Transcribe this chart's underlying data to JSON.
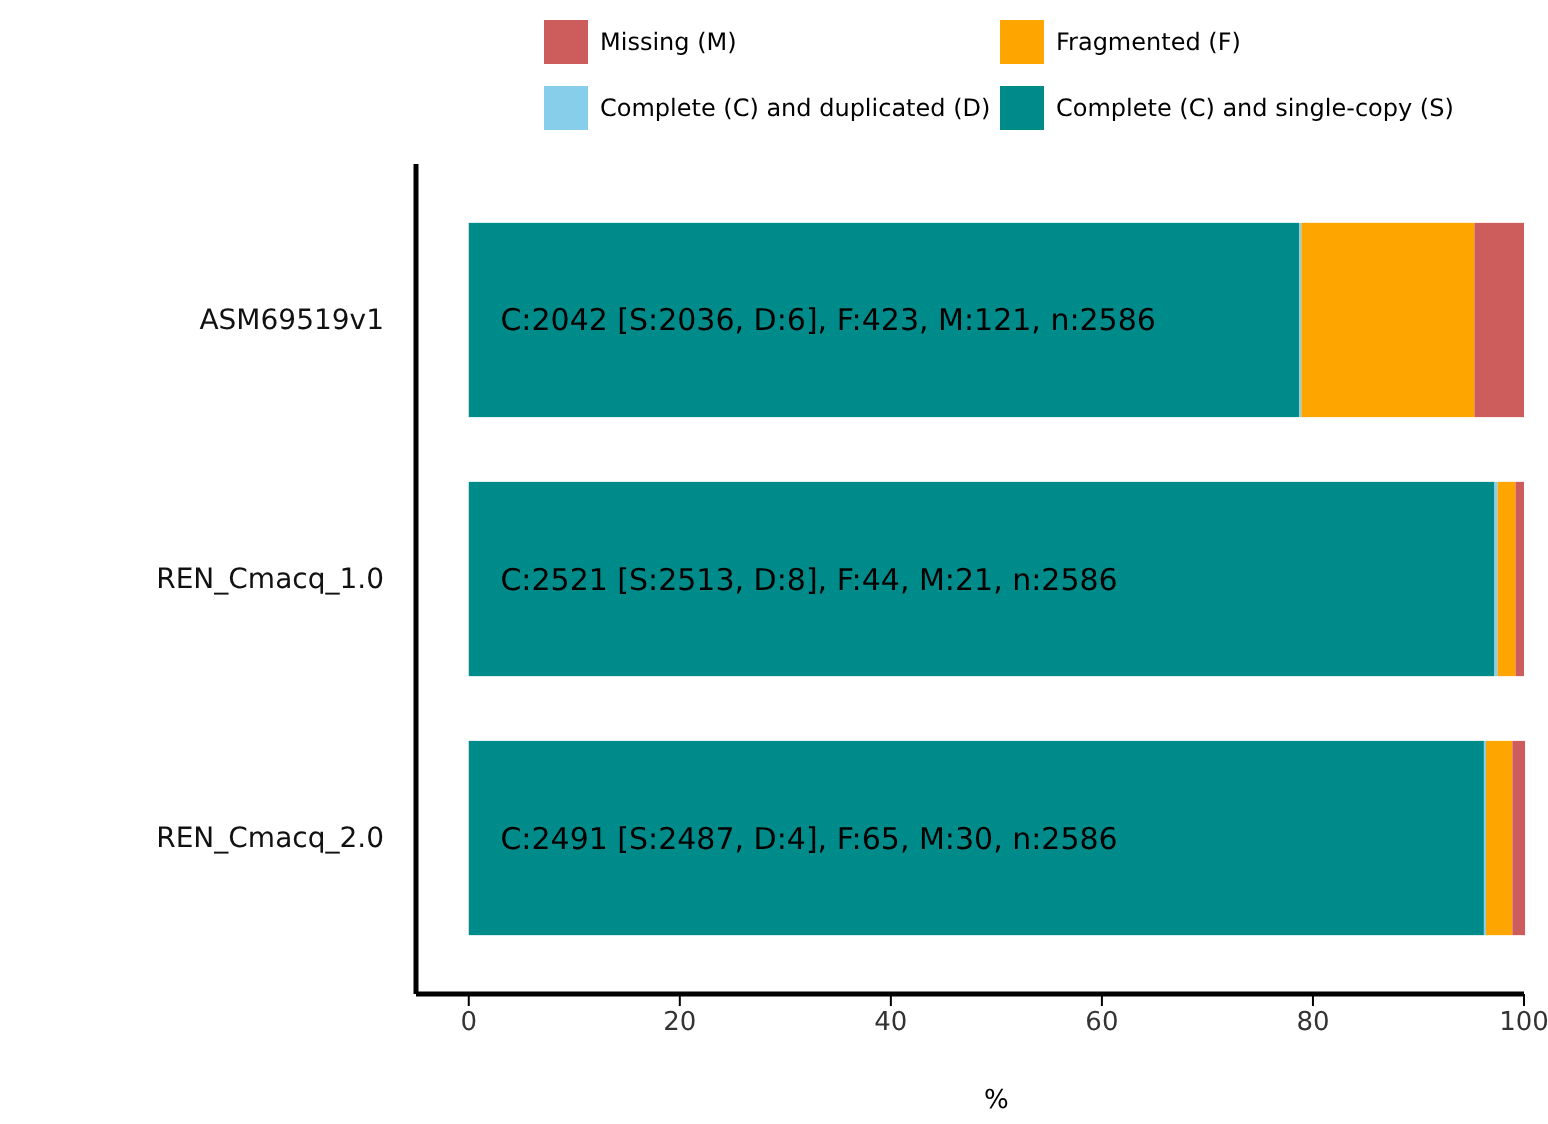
{
  "chart_data": {
    "type": "bar",
    "orientation": "horizontal",
    "stacked": true,
    "categories": [
      "ASM69519v1",
      "REN_Cmacq_1.0",
      "REN_Cmacq_2.0"
    ],
    "series": [
      {
        "name": "Complete (C) and single-copy (S)",
        "color": "#008b8b",
        "values": [
          78.7,
          97.2,
          96.2
        ]
      },
      {
        "name": "Complete (C) and duplicated (D)",
        "color": "#87ceeb",
        "values": [
          0.2,
          0.3,
          0.2
        ]
      },
      {
        "name": "Fragmented (F)",
        "color": "#ffa500",
        "values": [
          16.4,
          1.7,
          2.5
        ]
      },
      {
        "name": "Missing (M)",
        "color": "#cd5c5c",
        "values": [
          4.7,
          0.8,
          1.2
        ]
      }
    ],
    "xlim": [
      -5,
      100
    ],
    "xticks": [
      0,
      20,
      40,
      60,
      80,
      100
    ],
    "xlabel": "%",
    "annotations": [
      "C:2042 [S:2036, D:6], F:423, M:121, n:2586",
      "C:2521 [S:2513, D:8], F:44, M:21, n:2586",
      "C:2491 [S:2487, D:4], F:65, M:30, n:2586"
    ],
    "legend": "top",
    "grid": false
  }
}
